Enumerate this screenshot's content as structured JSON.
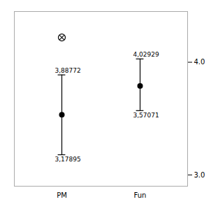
{
  "chart_data": {
    "type": "errorbar",
    "categories": [
      "PM",
      "Fun"
    ],
    "values": [
      3.53333,
      3.79
    ],
    "upper": [
      3.88772,
      4.02929
    ],
    "lower": [
      3.17895,
      3.57071
    ],
    "upper_labels": [
      "3,88772",
      "4,02929"
    ],
    "lower_labels": [
      "3,17895",
      "3,57071"
    ],
    "outliers": [
      4.22,
      null
    ],
    "ylim": [
      2.9,
      4.45
    ],
    "yticks": [
      3,
      4
    ],
    "grid": false
  }
}
